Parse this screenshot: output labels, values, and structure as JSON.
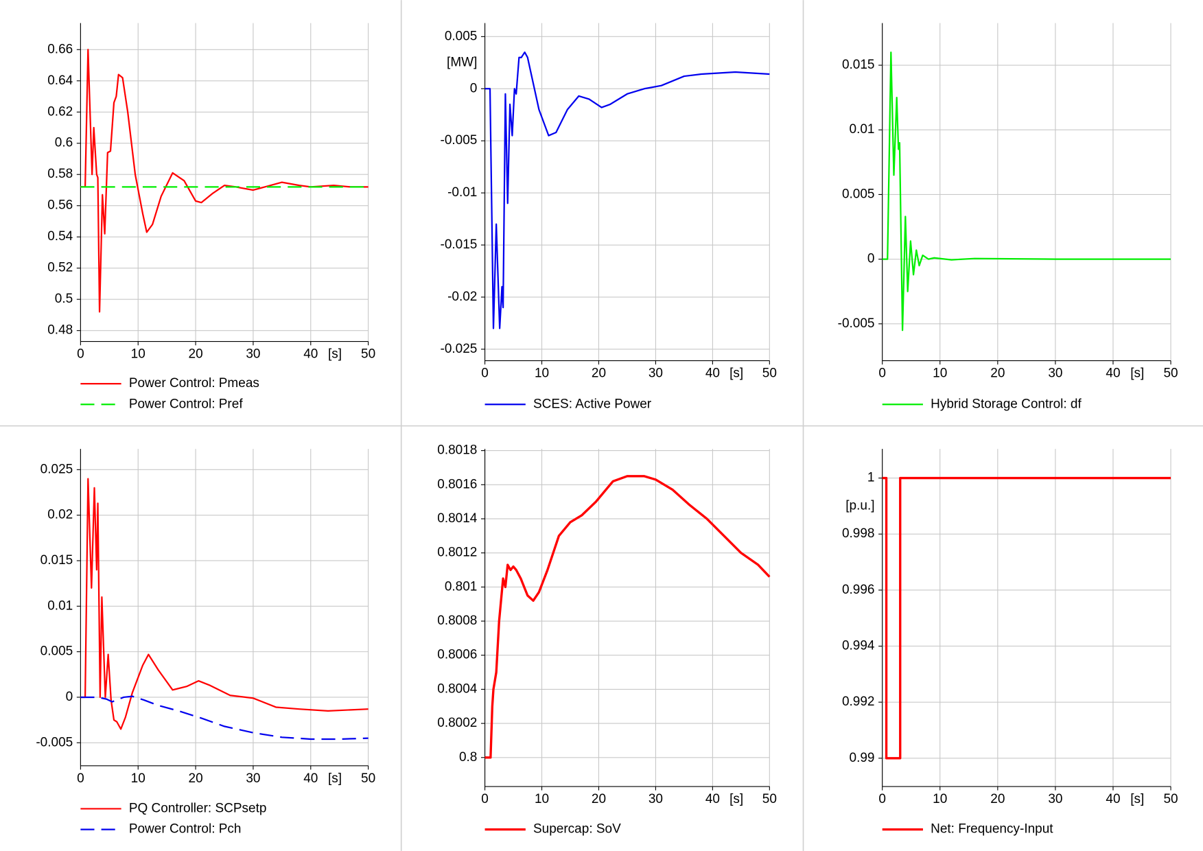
{
  "chart_data": [
    {
      "type": "line",
      "xlim": [
        0,
        50
      ],
      "xticks": [
        0,
        10,
        20,
        30,
        40,
        50
      ],
      "xlabel": "[s]",
      "ylim": [
        0.473,
        0.677
      ],
      "yticks": [
        0.48,
        0.5,
        0.52,
        0.54,
        0.56,
        0.58,
        0.6,
        0.62,
        0.64,
        0.66
      ],
      "grid": true,
      "series": [
        {
          "name": "Power Control: Pmeas",
          "color": "#ff0000",
          "x": [
            0,
            0.8,
            1.3,
            2,
            2.3,
            2.8,
            3.0,
            3.3,
            3.8,
            4.2,
            4.7,
            5.2,
            5.8,
            6.2,
            6.6,
            7.3,
            8.2,
            9.5,
            10.8,
            11.5,
            12.5,
            14,
            16,
            18,
            20,
            21,
            23,
            25,
            27,
            30,
            32,
            35,
            38,
            40,
            44,
            47,
            50
          ],
          "values": [
            0.572,
            0.572,
            0.66,
            0.58,
            0.61,
            0.58,
            0.578,
            0.492,
            0.567,
            0.542,
            0.594,
            0.595,
            0.626,
            0.63,
            0.644,
            0.642,
            0.62,
            0.58,
            0.555,
            0.543,
            0.548,
            0.566,
            0.581,
            0.576,
            0.563,
            0.562,
            0.568,
            0.573,
            0.572,
            0.57,
            0.572,
            0.575,
            0.573,
            0.572,
            0.573,
            0.572,
            0.572
          ]
        },
        {
          "name": "Power Control: Pref",
          "color": "#00ee00",
          "dashed": true,
          "x": [
            0,
            50
          ],
          "values": [
            0.572,
            0.572
          ]
        }
      ]
    },
    {
      "type": "line",
      "xlim": [
        0,
        50
      ],
      "xticks": [
        0,
        10,
        20,
        30,
        40,
        50
      ],
      "xlabel": "[s]",
      "ylabel": "[MW]",
      "ylim": [
        -0.0261,
        0.0063
      ],
      "yticks": [
        -0.025,
        -0.02,
        -0.015,
        -0.01,
        -0.005,
        0,
        0.005
      ],
      "grid": true,
      "series": [
        {
          "name": "SCES: Active Power",
          "color": "#0000ee",
          "x": [
            0,
            0.9,
            1.5,
            2.0,
            2.6,
            3.0,
            3.2,
            3.6,
            4.0,
            4.4,
            4.8,
            5.2,
            5.5,
            6.0,
            6.4,
            7.0,
            7.5,
            8.3,
            9.5,
            11.2,
            12.5,
            14.5,
            16.5,
            18.3,
            20.5,
            22,
            25,
            28,
            31,
            35,
            38,
            41,
            44,
            47,
            50
          ],
          "values": [
            0,
            0,
            -0.023,
            -0.013,
            -0.023,
            -0.019,
            -0.021,
            -0.0005,
            -0.011,
            -0.0015,
            -0.0045,
            0,
            -0.0005,
            0.003,
            0.003,
            0.0035,
            0.003,
            0.001,
            -0.002,
            -0.0045,
            -0.0042,
            -0.002,
            -0.0007,
            -0.001,
            -0.0018,
            -0.0015,
            -0.0005,
            0,
            0.0003,
            0.0012,
            0.0014,
            0.0015,
            0.0016,
            0.0015,
            0.0014
          ]
        }
      ]
    },
    {
      "type": "line",
      "xlim": [
        0,
        50
      ],
      "xticks": [
        0,
        10,
        20,
        30,
        40,
        50
      ],
      "xlabel": "[s]",
      "ylim": [
        -0.00785,
        0.01826
      ],
      "yticks": [
        -0.005,
        0,
        0.005,
        0.01,
        0.015
      ],
      "grid": true,
      "series": [
        {
          "name": "Hybrid Storage Control: df",
          "color": "#00ee00",
          "x": [
            0,
            0.9,
            1.5,
            2.0,
            2.5,
            2.8,
            3.0,
            3.5,
            4.0,
            4.4,
            4.9,
            5.4,
            5.9,
            6.4,
            7,
            8,
            9,
            12,
            16,
            30,
            50
          ],
          "values": [
            0,
            0,
            0.016,
            0.0065,
            0.0125,
            0.0085,
            0.009,
            -0.0055,
            0.0033,
            -0.0025,
            0.0014,
            -0.0012,
            0.0007,
            -0.0005,
            0.0003,
            0,
            0.0001,
            -5e-05,
            5e-05,
            0,
            0
          ]
        }
      ]
    },
    {
      "type": "line",
      "xlim": [
        0,
        50
      ],
      "xticks": [
        0,
        10,
        20,
        30,
        40,
        50
      ],
      "xlabel": "[s]",
      "ylim": [
        -0.00753,
        0.02728
      ],
      "yticks": [
        -0.005,
        0,
        0.005,
        0.01,
        0.015,
        0.02,
        0.025
      ],
      "grid": true,
      "series": [
        {
          "name": "PQ Controller: SCPsetp",
          "color": "#ff0000",
          "x": [
            0,
            0.8,
            1.3,
            1.9,
            2.4,
            2.8,
            3.0,
            3.4,
            3.7,
            4.3,
            4.8,
            5.3,
            5.8,
            6.3,
            7.0,
            7.8,
            9,
            10.8,
            11.8,
            13.5,
            16,
            18.5,
            20.5,
            22.5,
            26,
            30,
            34,
            38,
            43,
            50
          ],
          "values": [
            0,
            0,
            0.024,
            0.012,
            0.023,
            0.014,
            0.0213,
            0,
            0.011,
            0,
            0.0047,
            -0.0003,
            -0.0025,
            -0.0027,
            -0.0035,
            -0.0022,
            0.0005,
            0.0035,
            0.0047,
            0.003,
            0.0008,
            0.0012,
            0.0018,
            0.0013,
            0.0002,
            -0.0001,
            -0.0011,
            -0.0013,
            -0.0015,
            -0.0013
          ]
        },
        {
          "name": "Power Control: Pch",
          "color": "#0000ee",
          "dashed": true,
          "x": [
            0,
            3,
            4.5,
            5.5,
            7.5,
            9,
            11,
            13.5,
            17,
            21,
            25,
            30,
            35,
            40,
            45,
            50
          ],
          "values": [
            0,
            0,
            -0.0002,
            -0.0005,
            0,
            0.0001,
            -0.0003,
            -0.0009,
            -0.0015,
            -0.0023,
            -0.0032,
            -0.0039,
            -0.0044,
            -0.0046,
            -0.0046,
            -0.0045
          ]
        }
      ]
    },
    {
      "type": "line",
      "xlim": [
        0,
        50
      ],
      "xticks": [
        0,
        10,
        20,
        30,
        40,
        50
      ],
      "xlabel": "[s]",
      "ylim": [
        0.79983,
        0.80181
      ],
      "yticks": [
        0.8,
        0.8002,
        0.8004,
        0.8006,
        0.8008,
        0.801,
        0.8012,
        0.8014,
        0.8016,
        0.8018
      ],
      "grid": true,
      "series": [
        {
          "name": "Supercap: SoV",
          "color": "#ff0000",
          "line_width": 3,
          "x": [
            0,
            1.0,
            1.3,
            1.5,
            2.0,
            2.5,
            3.2,
            3.6,
            4.0,
            4.5,
            5,
            5.5,
            6.3,
            7.5,
            8.5,
            9.5,
            11,
            13,
            15,
            17,
            19.5,
            22.5,
            25,
            28,
            30,
            33,
            36,
            39,
            42,
            45,
            48,
            50
          ],
          "values": [
            0.8,
            0.8,
            0.8003,
            0.8004,
            0.8005,
            0.8008,
            0.80105,
            0.801,
            0.80113,
            0.8011,
            0.80112,
            0.8011,
            0.80105,
            0.80095,
            0.80092,
            0.80097,
            0.8011,
            0.8013,
            0.80138,
            0.80142,
            0.8015,
            0.80162,
            0.80165,
            0.80165,
            0.80163,
            0.80157,
            0.80148,
            0.8014,
            0.8013,
            0.8012,
            0.80113,
            0.80106
          ]
        }
      ]
    },
    {
      "type": "line",
      "xlim": [
        0,
        50
      ],
      "xticks": [
        0,
        10,
        20,
        30,
        40,
        50
      ],
      "xlabel": "[s]",
      "ylabel": "[p.u.]",
      "ylim": [
        0.98899,
        1.00104
      ],
      "yticks": [
        0.99,
        0.992,
        0.994,
        0.996,
        0.998,
        1
      ],
      "grid": true,
      "series": [
        {
          "name": "Net: Frequency-Input",
          "color": "#ff0000",
          "line_width": 3,
          "x": [
            0,
            0.7,
            0.7,
            3.1,
            3.1,
            50
          ],
          "values": [
            1,
            1,
            0.99,
            0.99,
            1,
            1
          ]
        }
      ]
    }
  ]
}
